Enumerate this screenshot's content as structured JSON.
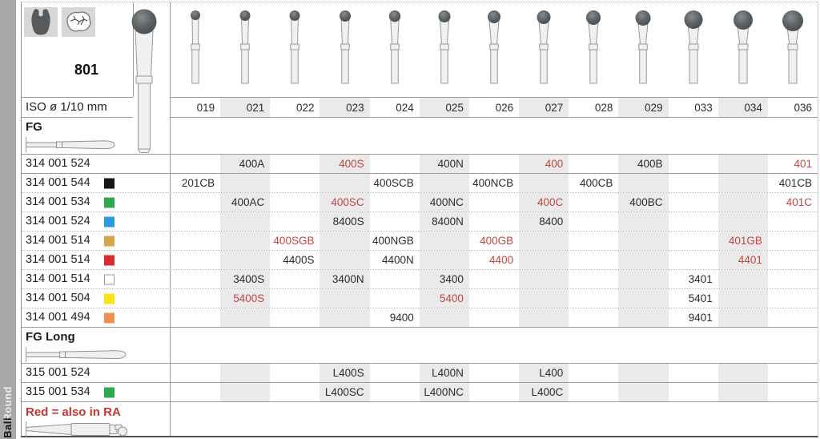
{
  "family_code": "801",
  "iso_label": "ISO ø 1/10 mm",
  "fg_label": "FG",
  "fg_long_label": "FG Long",
  "note_label": "Red = also in RA",
  "sidebar": {
    "round": "Round",
    "ball": "Ball"
  },
  "icons": {
    "left": "tooth-crown-icon",
    "right": "tooth-occlusal-icon"
  },
  "columns": [
    "019",
    "021",
    "022",
    "023",
    "024",
    "025",
    "026",
    "027",
    "028",
    "029",
    "033",
    "034",
    "036"
  ],
  "ball_radii": [
    6,
    6.5,
    6.5,
    7,
    7.2,
    7.5,
    8,
    8.5,
    9,
    9.5,
    11.5,
    12,
    13
  ],
  "shaded_columns": [
    1,
    3,
    5,
    7,
    9,
    11
  ],
  "rows_fg": [
    {
      "iso": "314 001 524",
      "chip": null,
      "sep": "solid",
      "cells": [
        {
          "col": 1,
          "text": "400A"
        },
        {
          "col": 3,
          "text": "400S",
          "red": true
        },
        {
          "col": 5,
          "text": "400N"
        },
        {
          "col": 7,
          "text": "400",
          "red": true
        },
        {
          "col": 9,
          "text": "400B"
        },
        {
          "col": 12,
          "text": "401",
          "red": true
        }
      ]
    },
    {
      "iso": "314 001 544",
      "chip": "#161616",
      "sep": "solid",
      "cells": [
        {
          "col": 0,
          "text": "201CB"
        },
        {
          "col": 4,
          "text": "400SCB"
        },
        {
          "col": 6,
          "text": "400NCB"
        },
        {
          "col": 8,
          "text": "400CB"
        },
        {
          "col": 12,
          "text": "401CB"
        }
      ]
    },
    {
      "iso": "314 001 534",
      "chip": "#2fa94f",
      "sep": "dotted",
      "cells": [
        {
          "col": 1,
          "text": "400AC"
        },
        {
          "col": 3,
          "text": "400SC",
          "red": true
        },
        {
          "col": 5,
          "text": "400NC"
        },
        {
          "col": 7,
          "text": "400C",
          "red": true
        },
        {
          "col": 9,
          "text": "400BC"
        },
        {
          "col": 12,
          "text": "401C",
          "red": true
        }
      ]
    },
    {
      "iso": "314 001 524",
      "chip": "#2b9be0",
      "sep": "dotted",
      "cells": [
        {
          "col": 3,
          "text": "8400S"
        },
        {
          "col": 5,
          "text": "8400N"
        },
        {
          "col": 7,
          "text": "8400"
        }
      ]
    },
    {
      "iso": "314 001 514",
      "chip": "#d6a449",
      "sep": "dotted",
      "cells": [
        {
          "col": 2,
          "text": "400SGB",
          "red": true
        },
        {
          "col": 4,
          "text": "400NGB"
        },
        {
          "col": 6,
          "text": "400GB",
          "red": true
        },
        {
          "col": 11,
          "text": "401GB",
          "red": true
        }
      ]
    },
    {
      "iso": "314 001 514",
      "chip": "#da2c2c",
      "sep": "dotted",
      "cells": [
        {
          "col": 2,
          "text": "4400S"
        },
        {
          "col": 4,
          "text": "4400N"
        },
        {
          "col": 6,
          "text": "4400",
          "red": true
        },
        {
          "col": 11,
          "text": "4401",
          "red": true
        }
      ]
    },
    {
      "iso": "314 001 514",
      "chip": "#ffffff",
      "chip_border": true,
      "sep": "dotted",
      "cells": [
        {
          "col": 1,
          "text": "3400S"
        },
        {
          "col": 3,
          "text": "3400N"
        },
        {
          "col": 5,
          "text": "3400"
        },
        {
          "col": 10,
          "text": "3401"
        }
      ]
    },
    {
      "iso": "314 001 504",
      "chip": "#ffe214",
      "sep": "dotted",
      "cells": [
        {
          "col": 1,
          "text": "5400S",
          "red": true
        },
        {
          "col": 5,
          "text": "5400",
          "red": true
        },
        {
          "col": 10,
          "text": "5401"
        }
      ]
    },
    {
      "iso": "314 001 494",
      "chip": "#f0914d",
      "sep": "dotted",
      "cells": [
        {
          "col": 4,
          "text": "9400"
        },
        {
          "col": 10,
          "text": "9401"
        }
      ]
    }
  ],
  "rows_fg_long": [
    {
      "iso": "315 001 524",
      "chip": null,
      "sep": "solid",
      "cells": [
        {
          "col": 3,
          "text": "L400S"
        },
        {
          "col": 5,
          "text": "L400N"
        },
        {
          "col": 7,
          "text": "L400"
        }
      ]
    },
    {
      "iso": "315 001 534",
      "chip": "#2fa94f",
      "sep": "solid",
      "cells": [
        {
          "col": 3,
          "text": "L400SC"
        },
        {
          "col": 5,
          "text": "L400NC"
        },
        {
          "col": 7,
          "text": "L400C"
        }
      ]
    }
  ],
  "colors": {
    "red_text": "#c2463e",
    "note_red": "#c93630",
    "shade": "#eaeaea",
    "sidebar_bg": "#a8a8a8",
    "icon_bg": "#d7d7d7",
    "ball_fill": "#5d6164"
  }
}
